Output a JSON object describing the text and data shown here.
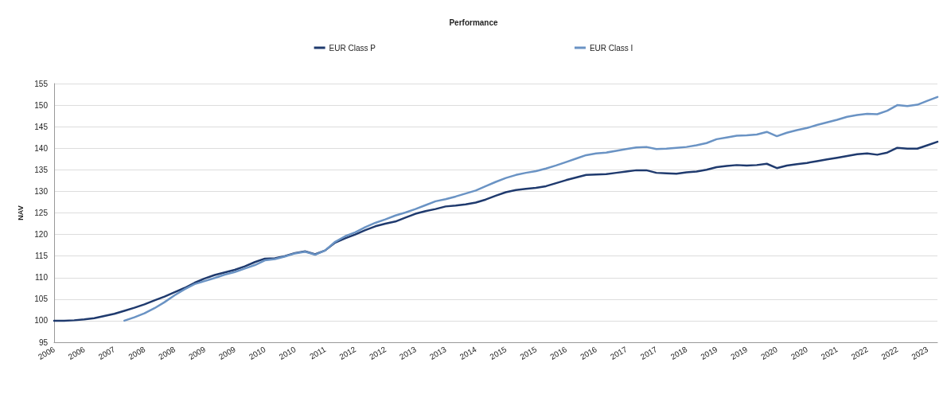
{
  "chart_data": {
    "type": "line",
    "title": "Performance",
    "ylabel": "NAV",
    "categories": [
      "2006",
      null,
      null,
      "2006",
      null,
      null,
      "2007",
      null,
      null,
      "2008",
      null,
      null,
      "2008",
      null,
      null,
      "2009",
      null,
      null,
      "2009",
      null,
      null,
      "2010",
      null,
      null,
      "2010",
      null,
      null,
      "2011",
      null,
      null,
      "2012",
      null,
      null,
      "2012",
      null,
      null,
      "2013",
      null,
      null,
      "2013",
      null,
      null,
      "2014",
      null,
      null,
      "2015",
      null,
      null,
      "2015",
      null,
      null,
      "2016",
      null,
      null,
      "2016",
      null,
      null,
      "2017",
      null,
      null,
      "2017",
      null,
      null,
      "2018",
      null,
      null,
      "2019",
      null,
      null,
      "2019",
      null,
      null,
      "2020",
      null,
      null,
      "2020",
      null,
      null,
      "2021",
      null,
      null,
      "2022",
      null,
      null,
      "2022",
      null,
      null,
      "2023",
      null
    ],
    "series": [
      {
        "name": "EUR Class P",
        "color": "#1f3a6e",
        "values": [
          100,
          100,
          100.1,
          100.3,
          100.6,
          101.1,
          101.6,
          102.3,
          103.0,
          103.8,
          104.7,
          105.6,
          106.6,
          107.6,
          108.8,
          109.8,
          110.6,
          111.2,
          111.8,
          112.6,
          113.6,
          114.4,
          114.5,
          115.0,
          115.7,
          116.1,
          115.4,
          116.3,
          118.1,
          119.1,
          120.0,
          121.0,
          121.9,
          122.5,
          123.0,
          123.9,
          124.8,
          125.4,
          125.9,
          126.5,
          126.7,
          127.0,
          127.4,
          128.1,
          129.0,
          129.8,
          130.3,
          130.6,
          130.8,
          131.2,
          131.9,
          132.6,
          133.2,
          133.8,
          133.9,
          134.0,
          134.3,
          134.6,
          134.9,
          134.9,
          134.3,
          134.2,
          134.1,
          134.4,
          134.6,
          135.0,
          135.6,
          135.9,
          136.1,
          136.0,
          136.1,
          136.4,
          135.4,
          136.0,
          136.3,
          136.6,
          137.0,
          137.4,
          137.8,
          138.2,
          138.6,
          138.8,
          138.5,
          139.0,
          140.1,
          139.9,
          139.9,
          140.7,
          141.5
        ]
      },
      {
        "name": "EUR Class I",
        "color": "#6a93c4",
        "values": [
          null,
          null,
          null,
          null,
          null,
          null,
          null,
          100,
          100.8,
          101.7,
          102.9,
          104.3,
          105.9,
          107.3,
          108.5,
          109.2,
          109.9,
          110.7,
          111.3,
          112.1,
          112.9,
          114.0,
          114.3,
          114.9,
          115.6,
          116.0,
          115.3,
          116.3,
          118.3,
          119.6,
          120.5,
          121.7,
          122.7,
          123.5,
          124.4,
          125.1,
          125.9,
          126.8,
          127.7,
          128.2,
          128.8,
          129.5,
          130.2,
          131.2,
          132.2,
          133.1,
          133.8,
          134.3,
          134.7,
          135.3,
          136.0,
          136.8,
          137.6,
          138.4,
          138.8,
          139.0,
          139.4,
          139.8,
          140.2,
          140.3,
          139.8,
          139.9,
          140.1,
          140.3,
          140.7,
          141.2,
          142.1,
          142.5,
          142.9,
          143.0,
          143.2,
          143.8,
          142.8,
          143.6,
          144.2,
          144.7,
          145.4,
          146.0,
          146.6,
          147.3,
          147.7,
          148.0,
          147.9,
          148.7,
          150.0,
          149.8,
          150.1,
          151.0,
          151.9
        ]
      }
    ],
    "ylim": [
      95,
      155
    ],
    "yticks": [
      95,
      100,
      105,
      110,
      115,
      120,
      125,
      130,
      135,
      140,
      145,
      150,
      155
    ],
    "grid": "y",
    "legend": "top",
    "marker": "none",
    "line_style": "solid"
  }
}
